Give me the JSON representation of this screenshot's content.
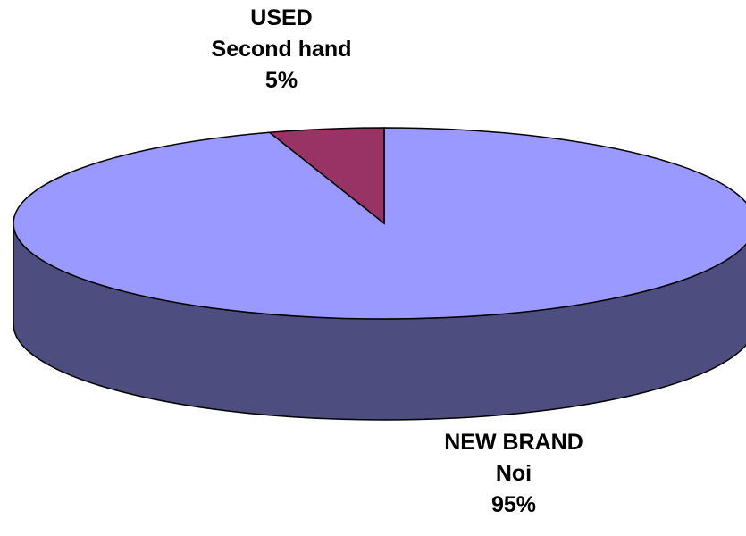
{
  "chart_data": {
    "type": "pie",
    "style": "3d",
    "categories": [
      "USED",
      "NEW BRAND"
    ],
    "values": [
      5,
      95
    ],
    "slices": [
      {
        "name": "USED",
        "subname": "Second hand",
        "value": 5,
        "label": "5%",
        "color": "#993366"
      },
      {
        "name": "NEW BRAND",
        "subname": "Noi",
        "value": 95,
        "label": "95%",
        "color": "#9999FF"
      }
    ],
    "title": "",
    "legend": "none"
  },
  "colors": {
    "used_top": "#993366",
    "new_top": "#9999FF",
    "new_side": "#4D4D80",
    "outline": "#000000"
  }
}
